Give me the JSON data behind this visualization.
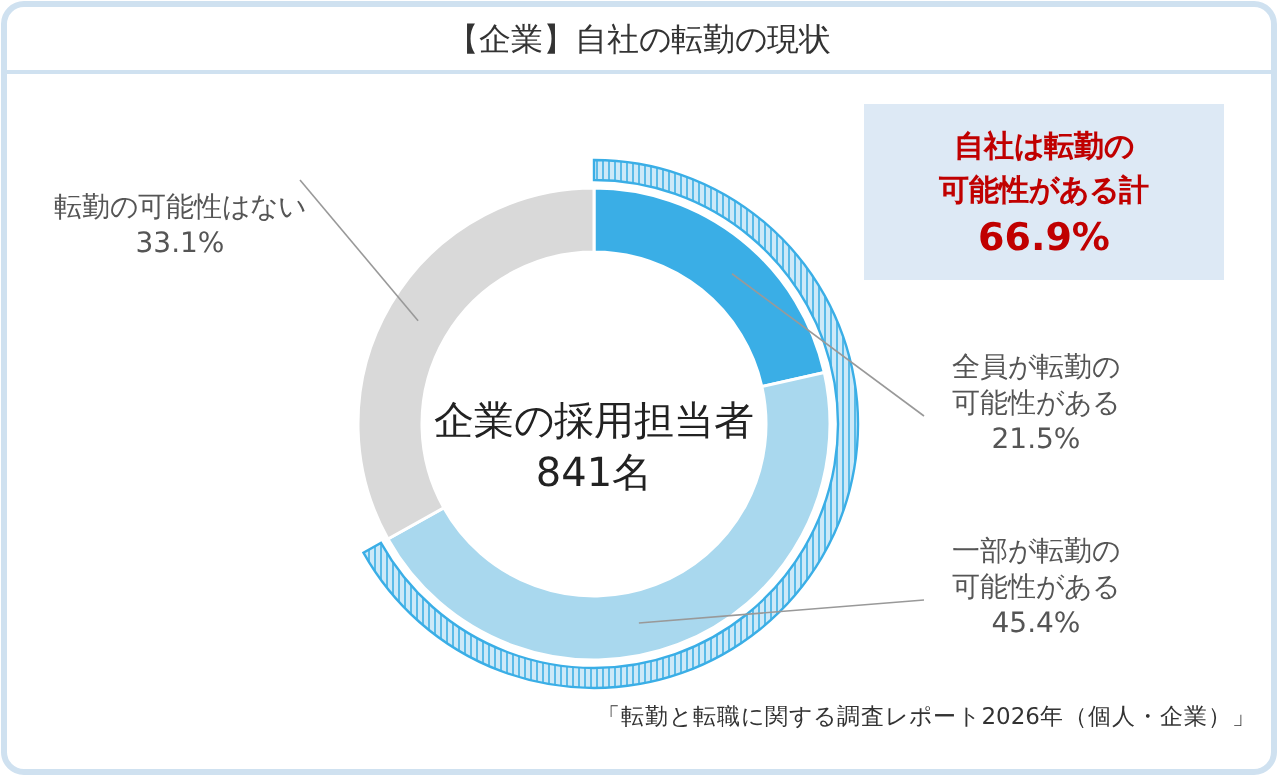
{
  "chart_data": {
    "type": "donut",
    "title": "【企業】自社の転勤の現状",
    "categories": [
      "全員が転勤の可能性がある",
      "一部が転勤の可能性がある",
      "転勤の可能性はない"
    ],
    "values": [
      21.5,
      45.4,
      33.1
    ],
    "colors": [
      "#3aaee6",
      "#a9d8ee",
      "#d9d9d9"
    ],
    "value_labels": [
      "21.5%",
      "45.4%",
      "33.1%"
    ],
    "annotations": [
      "自社は転勤の可能性がある計",
      "66.9%",
      "企業の採用担当者",
      "841名",
      "「転勤と転職に関する調査レポート2026年（個人・企業）」"
    ]
  }
}
